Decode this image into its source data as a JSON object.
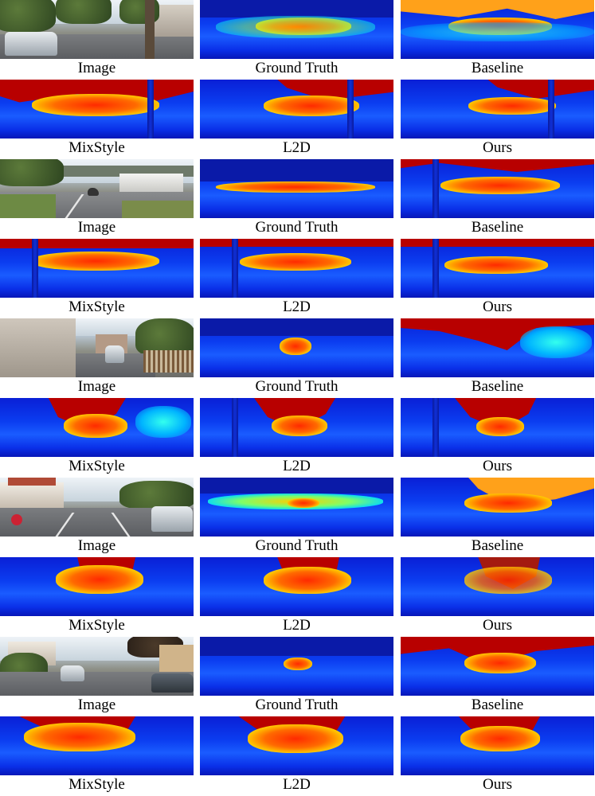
{
  "rows": [
    {
      "labels": [
        "Image",
        "Ground Truth",
        "Baseline"
      ]
    },
    {
      "labels": [
        "MixStyle",
        "L2D",
        "Ours"
      ]
    },
    {
      "labels": [
        "Image",
        "Ground Truth",
        "Baseline"
      ]
    },
    {
      "labels": [
        "MixStyle",
        "L2D",
        "Ours"
      ]
    },
    {
      "labels": [
        "Image",
        "Ground Truth",
        "Baseline"
      ]
    },
    {
      "labels": [
        "MixStyle",
        "L2D",
        "Ours"
      ]
    },
    {
      "labels": [
        "Image",
        "Ground Truth",
        "Baseline"
      ]
    },
    {
      "labels": [
        "MixStyle",
        "L2D",
        "Ours"
      ]
    },
    {
      "labels": [
        "Image",
        "Ground Truth",
        "Baseline"
      ]
    },
    {
      "labels": [
        "MixStyle",
        "L2D",
        "Ours"
      ]
    }
  ]
}
